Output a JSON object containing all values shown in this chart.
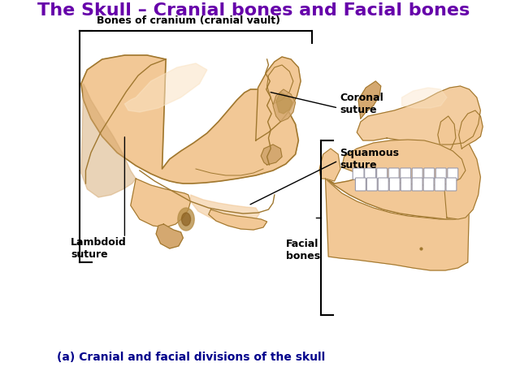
{
  "title": "The Skull – Cranial bones and Facial bones",
  "title_color": "#6600aa",
  "title_fontsize": 16,
  "subtitle": "Bones of cranium (cranial vault)",
  "subtitle_fontsize": 9,
  "caption": "(a) Cranial and facial divisions of the skull",
  "caption_fontsize": 10,
  "caption_color": "#00008B",
  "bg_color": "#ffffff",
  "label_fontsize": 9,
  "label_color": "#000000",
  "skull_color": "#F2C896",
  "skull_highlight": "#FAE3C3",
  "skull_shadow": "#D4A870",
  "skull_dark": "#B8904A",
  "skull_line": "#A07830"
}
